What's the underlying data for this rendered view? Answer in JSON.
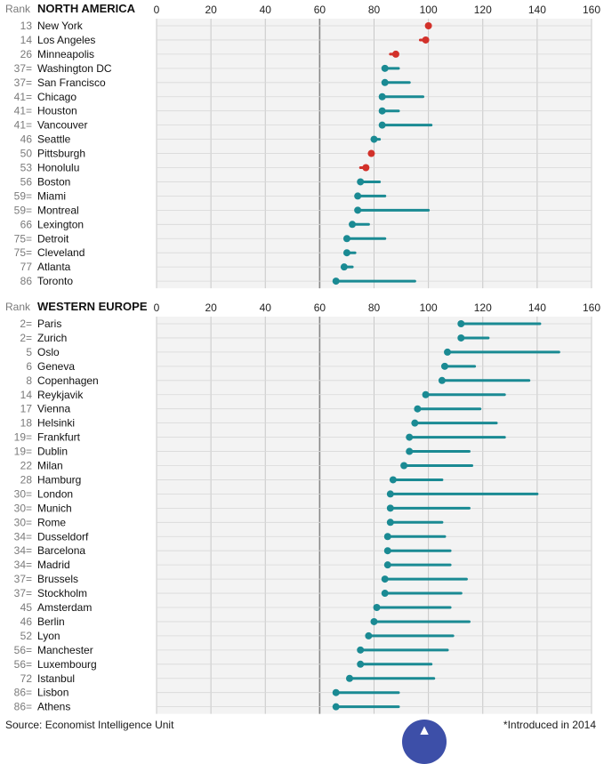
{
  "chart_data": [
    {
      "type": "dot-range",
      "title": "NORTH AMERICA",
      "rank_label": "Rank",
      "xlim": [
        0,
        160
      ],
      "ticks": [
        "0",
        "20",
        "40",
        "60",
        "80",
        "100",
        "120",
        "140",
        "160"
      ],
      "reference_line": 60,
      "rows": [
        {
          "rank": "13",
          "city": "New York",
          "value": 100,
          "high": 100,
          "color": "red"
        },
        {
          "rank": "14",
          "city": "Los Angeles",
          "value": 99,
          "high": 99,
          "low": 97,
          "color": "red"
        },
        {
          "rank": "26",
          "city": "Minneapolis",
          "value": 88,
          "high": 88,
          "low": 86,
          "color": "red"
        },
        {
          "rank": "37=",
          "city": "Washington DC",
          "value": 84,
          "high": 89,
          "color": "teal"
        },
        {
          "rank": "37=",
          "city": "San Francisco",
          "value": 84,
          "high": 93,
          "color": "teal"
        },
        {
          "rank": "41=",
          "city": "Chicago",
          "value": 83,
          "high": 98,
          "color": "teal"
        },
        {
          "rank": "41=",
          "city": "Houston",
          "value": 83,
          "high": 89,
          "color": "teal"
        },
        {
          "rank": "41=",
          "city": "Vancouver",
          "value": 83,
          "high": 101,
          "color": "teal"
        },
        {
          "rank": "46",
          "city": "Seattle",
          "value": 80,
          "high": 82,
          "color": "teal"
        },
        {
          "rank": "50",
          "city": "Pittsburgh",
          "value": 79,
          "high": 79,
          "color": "red"
        },
        {
          "rank": "53",
          "city": "Honolulu",
          "value": 77,
          "high": 77,
          "low": 75,
          "color": "red"
        },
        {
          "rank": "56",
          "city": "Boston",
          "value": 75,
          "high": 82,
          "color": "teal"
        },
        {
          "rank": "59=",
          "city": "Miami",
          "value": 74,
          "high": 84,
          "color": "teal"
        },
        {
          "rank": "59=",
          "city": "Montreal",
          "value": 74,
          "high": 100,
          "color": "teal"
        },
        {
          "rank": "66",
          "city": "Lexington",
          "value": 72,
          "high": 78,
          "color": "teal"
        },
        {
          "rank": "75=",
          "city": "Detroit",
          "value": 70,
          "high": 84,
          "color": "teal"
        },
        {
          "rank": "75=",
          "city": "Cleveland",
          "value": 70,
          "high": 73,
          "color": "teal"
        },
        {
          "rank": "77",
          "city": "Atlanta",
          "value": 69,
          "high": 72,
          "color": "teal"
        },
        {
          "rank": "86",
          "city": "Toronto",
          "value": 66,
          "high": 95,
          "color": "teal"
        }
      ]
    },
    {
      "type": "dot-range",
      "title": "WESTERN EUROPE",
      "rank_label": "Rank",
      "xlim": [
        0,
        160
      ],
      "ticks": [
        "0",
        "20",
        "40",
        "60",
        "80",
        "100",
        "120",
        "140",
        "160"
      ],
      "reference_line": 60,
      "rows": [
        {
          "rank": "2=",
          "city": "Paris",
          "value": 112,
          "high": 141,
          "color": "teal"
        },
        {
          "rank": "2=",
          "city": "Zurich",
          "value": 112,
          "high": 122,
          "color": "teal"
        },
        {
          "rank": "5",
          "city": "Oslo",
          "value": 107,
          "high": 148,
          "color": "teal"
        },
        {
          "rank": "6",
          "city": "Geneva",
          "value": 106,
          "high": 117,
          "color": "teal"
        },
        {
          "rank": "8",
          "city": "Copenhagen",
          "value": 105,
          "high": 137,
          "color": "teal"
        },
        {
          "rank": "14",
          "city": "Reykjavik",
          "value": 99,
          "high": 128,
          "color": "teal"
        },
        {
          "rank": "17",
          "city": "Vienna",
          "value": 96,
          "high": 119,
          "color": "teal"
        },
        {
          "rank": "18",
          "city": "Helsinki",
          "value": 95,
          "high": 125,
          "color": "teal"
        },
        {
          "rank": "19=",
          "city": "Frankfurt",
          "value": 93,
          "high": 128,
          "color": "teal"
        },
        {
          "rank": "19=",
          "city": "Dublin",
          "value": 93,
          "high": 115,
          "color": "teal"
        },
        {
          "rank": "22",
          "city": "Milan",
          "value": 91,
          "high": 116,
          "color": "teal"
        },
        {
          "rank": "28",
          "city": "Hamburg",
          "value": 87,
          "high": 105,
          "color": "teal"
        },
        {
          "rank": "30=",
          "city": "London",
          "value": 86,
          "high": 140,
          "color": "teal"
        },
        {
          "rank": "30=",
          "city": "Munich",
          "value": 86,
          "high": 115,
          "color": "teal"
        },
        {
          "rank": "30=",
          "city": "Rome",
          "value": 86,
          "high": 105,
          "color": "teal"
        },
        {
          "rank": "34=",
          "city": "Dusseldorf",
          "value": 85,
          "high": 106,
          "color": "teal"
        },
        {
          "rank": "34=",
          "city": "Barcelona",
          "value": 85,
          "high": 108,
          "color": "teal"
        },
        {
          "rank": "34=",
          "city": "Madrid",
          "value": 85,
          "high": 108,
          "color": "teal"
        },
        {
          "rank": "37=",
          "city": "Brussels",
          "value": 84,
          "high": 114,
          "color": "teal"
        },
        {
          "rank": "37=",
          "city": "Stockholm",
          "value": 84,
          "high": 112,
          "color": "teal"
        },
        {
          "rank": "45",
          "city": "Amsterdam",
          "value": 81,
          "high": 108,
          "color": "teal"
        },
        {
          "rank": "46",
          "city": "Berlin",
          "value": 80,
          "high": 115,
          "color": "teal"
        },
        {
          "rank": "52",
          "city": "Lyon",
          "value": 78,
          "high": 109,
          "color": "teal"
        },
        {
          "rank": "56=",
          "city": "Manchester",
          "value": 75,
          "high": 107,
          "color": "teal"
        },
        {
          "rank": "56=",
          "city": "Luxembourg",
          "value": 75,
          "high": 101,
          "color": "teal"
        },
        {
          "rank": "72",
          "city": "Istanbul",
          "value": 71,
          "high": 102,
          "color": "teal"
        },
        {
          "rank": "86=",
          "city": "Lisbon",
          "value": 66,
          "high": 89,
          "color": "teal"
        },
        {
          "rank": "86=",
          "city": "Athens",
          "value": 66,
          "high": 89,
          "color": "teal"
        }
      ]
    }
  ],
  "colors": {
    "teal": "#1a8a93",
    "red": "#d2312a",
    "grid": "#c8c8c8",
    "refline": "#888888",
    "panel": "#f3f3f3",
    "rank": "#7a7a7a"
  },
  "footer": {
    "source": "Source: Economist Intelligence Unit",
    "footnote": "*Introduced in 2014"
  },
  "scroll_button": {
    "icon": "chevron-up-icon"
  }
}
